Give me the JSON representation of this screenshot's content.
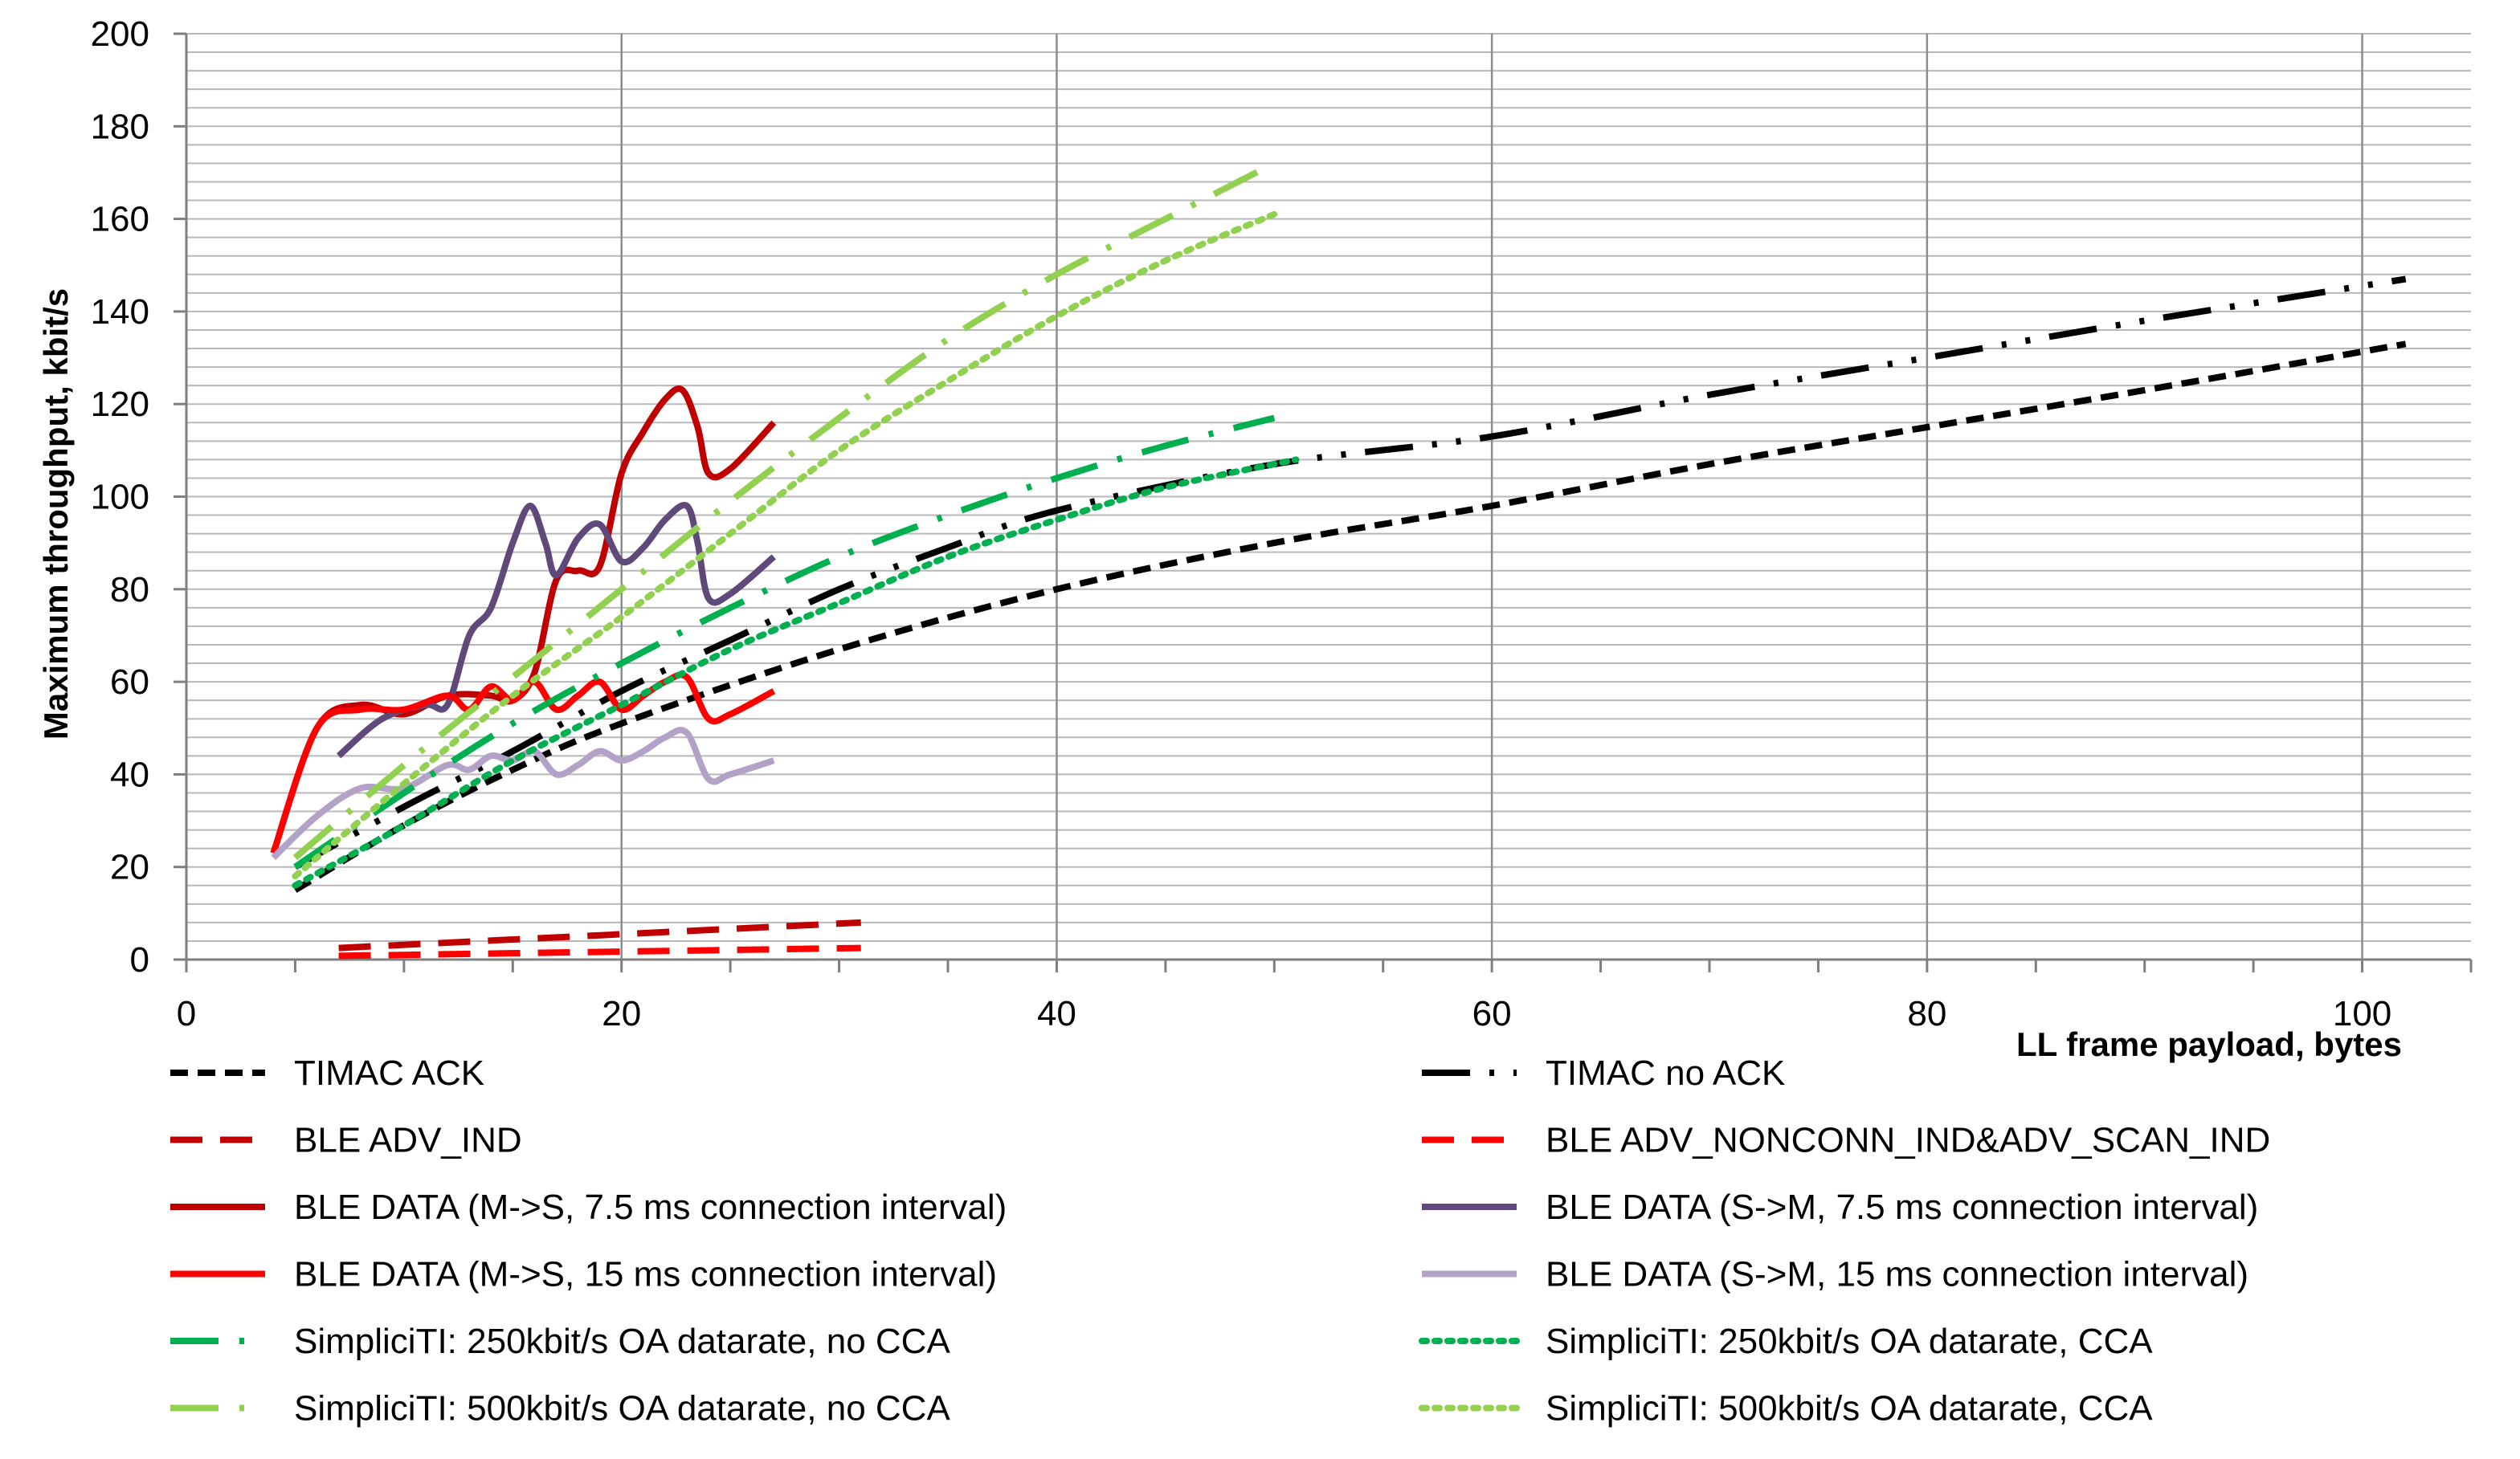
{
  "chart_data": {
    "type": "line",
    "title": "",
    "xlabel": "LL frame payload, bytes",
    "ylabel": "Maximum throughput, kbit/s",
    "xlim": [
      0,
      105
    ],
    "ylim": [
      0,
      200
    ],
    "x_ticks": [
      0,
      20,
      40,
      60,
      80,
      100
    ],
    "y_ticks": [
      0,
      20,
      40,
      60,
      80,
      100,
      120,
      140,
      160,
      180,
      200
    ],
    "grid": true,
    "legend_position": "bottom, two columns",
    "series": [
      {
        "name": "TIMAC ACK",
        "color": "#000000",
        "style": "dash",
        "width": 8,
        "x": [
          5,
          10,
          15,
          20,
          30,
          40,
          50,
          60,
          70,
          80,
          90,
          102
        ],
        "y": [
          15,
          29,
          41,
          51,
          67,
          80,
          90,
          98,
          107,
          115,
          123,
          133
        ]
      },
      {
        "name": "TIMAC no ACK",
        "color": "#000000",
        "style": "longdashdotdot",
        "width": 8,
        "x": [
          5,
          10,
          15,
          20,
          25,
          30,
          35,
          40,
          50,
          60,
          70,
          80,
          90,
          102
        ],
        "y": [
          20,
          33,
          45,
          58,
          69,
          80,
          89,
          97,
          107,
          113,
          122,
          130,
          138,
          147
        ]
      },
      {
        "name": "BLE ADV_IND",
        "color": "#c00000",
        "style": "longdash",
        "width": 8,
        "x": [
          7,
          31
        ],
        "y": [
          2.5,
          8
        ]
      },
      {
        "name": "BLE ADV_NONCONN_IND&ADV_SCAN_IND",
        "color": "#ff0000",
        "style": "longdash",
        "width": 8,
        "x": [
          7,
          31
        ],
        "y": [
          0.8,
          2.5
        ]
      },
      {
        "name": "BLE DATA (M->S, 7.5 ms connection interval)",
        "color": "#c00000",
        "style": "solid",
        "width": 8,
        "x": [
          4,
          6,
          8,
          10,
          12,
          14,
          15,
          16,
          17,
          18,
          19,
          20,
          21,
          22,
          22.8,
          23.5,
          24,
          25,
          27
        ],
        "y": [
          23,
          50,
          55,
          53,
          57,
          57,
          56,
          62,
          82,
          84,
          85,
          105,
          114,
          121,
          123,
          115,
          105,
          106,
          116
        ]
      },
      {
        "name": "BLE DATA (S->M, 7.5 ms connection interval)",
        "color": "#5f497a",
        "style": "solid",
        "width": 8,
        "x": [
          7,
          9,
          11,
          12,
          13,
          14,
          15,
          15.8,
          16.5,
          17,
          18,
          19,
          20,
          21,
          22,
          23,
          23.5,
          24,
          25,
          27
        ],
        "y": [
          44,
          52,
          55,
          55,
          70,
          76,
          90,
          98,
          90,
          83,
          91,
          94,
          86,
          89,
          95,
          98,
          90,
          78,
          79,
          87
        ]
      },
      {
        "name": "BLE DATA (M->S, 15 ms connection interval)",
        "color": "#ff0000",
        "style": "solid",
        "width": 8,
        "x": [
          4,
          6,
          8,
          10,
          12,
          13,
          14,
          15,
          16,
          17,
          18,
          19,
          20,
          21,
          22,
          23,
          24,
          25,
          27
        ],
        "y": [
          23,
          50,
          54,
          54,
          57,
          54,
          59,
          56,
          60,
          54,
          57,
          60,
          54,
          57,
          60,
          61,
          52,
          53,
          58
        ]
      },
      {
        "name": "BLE DATA (S->M, 15 ms connection interval)",
        "color": "#b3a2c7",
        "style": "solid",
        "width": 8,
        "x": [
          4,
          6,
          8,
          10,
          12,
          13,
          14,
          15,
          16,
          17,
          18,
          19,
          20,
          21,
          22,
          23,
          24,
          25,
          27
        ],
        "y": [
          22,
          31,
          37,
          37,
          42,
          41,
          44,
          43,
          45,
          40,
          42,
          45,
          43,
          45,
          48,
          49,
          39,
          40,
          43
        ]
      },
      {
        "name": "SimpliciTI: 250kbit/s OA datarate, no CCA",
        "color": "#00b050",
        "style": "longdashdot",
        "width": 8,
        "x": [
          5,
          10,
          15,
          20,
          25,
          30,
          35,
          40,
          45,
          50
        ],
        "y": [
          20,
          36,
          51,
          64,
          76,
          87,
          96,
          104,
          111,
          117
        ]
      },
      {
        "name": "SimpliciTI: 250kbit/s OA datarate, CCA",
        "color": "#00b050",
        "style": "dot",
        "width": 8,
        "x": [
          5,
          10,
          15,
          20,
          25,
          30,
          35,
          40,
          45,
          51
        ],
        "y": [
          16,
          29,
          43,
          55,
          67,
          77,
          87,
          95,
          102,
          108
        ]
      },
      {
        "name": "SimpliciTI: 500kbit/s OA datarate, no CCA",
        "color": "#92d050",
        "style": "longdashdot",
        "width": 8,
        "x": [
          5,
          10,
          15,
          20,
          25,
          30,
          35,
          40,
          45,
          50
        ],
        "y": [
          22,
          42,
          61,
          80,
          99,
          117,
          134,
          148,
          160,
          172
        ]
      },
      {
        "name": "SimpliciTI: 500kbit/s OA datarate, CCA",
        "color": "#92d050",
        "style": "dot",
        "width": 8,
        "x": [
          5,
          10,
          15,
          20,
          25,
          30,
          35,
          40,
          45,
          50
        ],
        "y": [
          18,
          38,
          57,
          74,
          92,
          110,
          125,
          139,
          151,
          161
        ]
      }
    ]
  }
}
